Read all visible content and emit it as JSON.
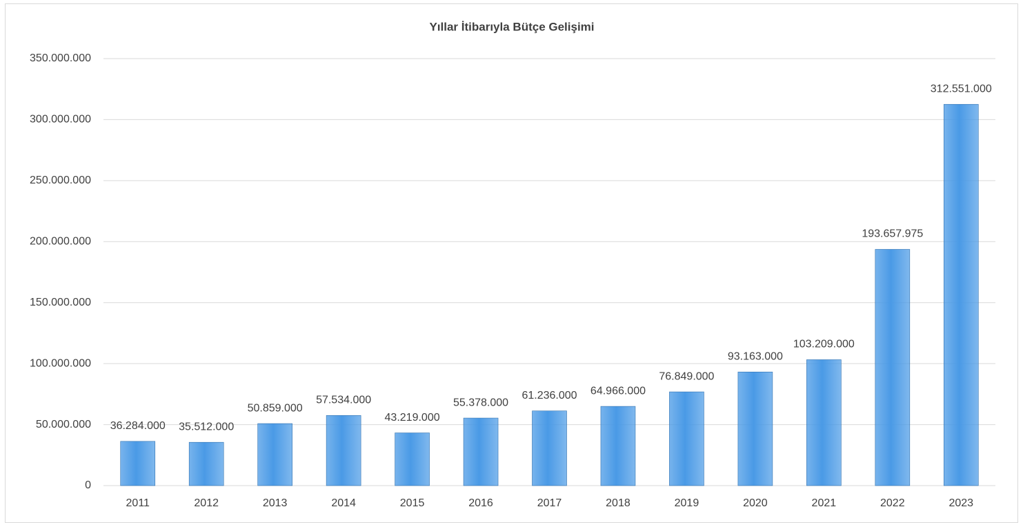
{
  "chart_data": {
    "type": "bar",
    "title": "Yıllar İtibarıyla Bütçe Gelişimi",
    "categories": [
      "2011",
      "2012",
      "2013",
      "2014",
      "2015",
      "2016",
      "2017",
      "2018",
      "2019",
      "2020",
      "2021",
      "2022",
      "2023"
    ],
    "values": [
      36284000,
      35512000,
      50859000,
      57534000,
      43219000,
      55378000,
      61236000,
      64966000,
      76849000,
      93163000,
      103209000,
      193657975,
      312551000
    ],
    "value_labels": [
      "36.284.000",
      "35.512.000",
      "50.859.000",
      "57.534.000",
      "43.219.000",
      "55.378.000",
      "61.236.000",
      "64.966.000",
      "76.849.000",
      "93.163.000",
      "103.209.000",
      "193.657.975",
      "312.551.000"
    ],
    "color": "#4a9ae6",
    "ylim": [
      0,
      350000000
    ],
    "yticks": [
      0,
      {
        "value": 50000000,
        "label": "50.000.000"
      },
      {
        "value": 100000000,
        "label": "100.000.000"
      },
      {
        "value": 150000000,
        "label": "150.000.000"
      },
      {
        "value": 200000000,
        "label": "200.000.000"
      },
      {
        "value": 250000000,
        "label": "250.000.000"
      },
      {
        "value": 300000000,
        "label": "300.000.000"
      },
      {
        "value": 350000000,
        "label": "350.000.000"
      }
    ],
    "grid": true
  }
}
